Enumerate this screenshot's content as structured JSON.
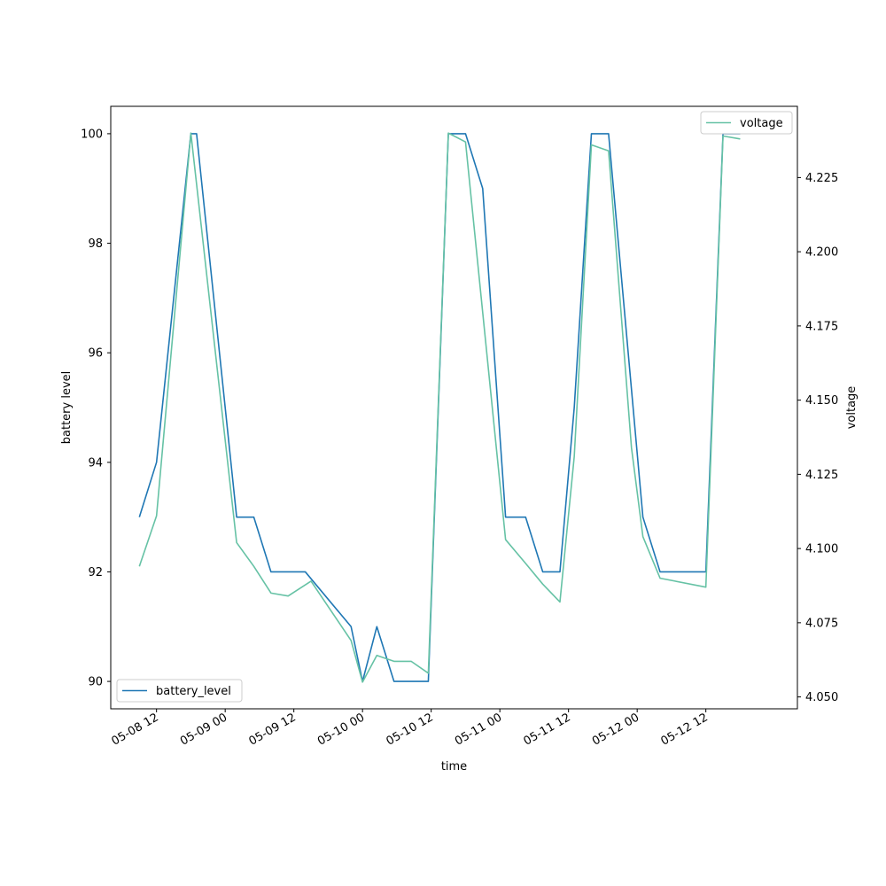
{
  "chart_data": {
    "type": "line",
    "title": "",
    "xlabel": "time",
    "ylabel": "battery level",
    "y2label": "voltage",
    "x_tick_labels": [
      "05-08 12",
      "05-09 00",
      "05-09 12",
      "05-10 00",
      "05-10 12",
      "05-11 00",
      "05-11 12",
      "05-12 00",
      "05-12 12"
    ],
    "y_ticks": [
      90,
      92,
      94,
      96,
      98,
      100
    ],
    "y2_ticks": [
      "4.050",
      "4.075",
      "4.100",
      "4.125",
      "4.150",
      "4.175",
      "4.200",
      "4.225"
    ],
    "ylim": [
      89.5,
      100.5
    ],
    "y2lim": [
      4.046,
      4.249
    ],
    "xlim": [
      "2021-05-08 04:00",
      "2021-05-13 04:00"
    ],
    "series": [
      {
        "name": "battery_level",
        "axis": "left",
        "color": "#1f77b4",
        "legend_position": "lower-left",
        "points": [
          [
            "2021-05-08 09:00",
            93
          ],
          [
            "2021-05-08 12:00",
            94
          ],
          [
            "2021-05-08 18:00",
            100
          ],
          [
            "2021-05-08 19:00",
            100
          ],
          [
            "2021-05-09 02:00",
            93
          ],
          [
            "2021-05-09 05:00",
            93
          ],
          [
            "2021-05-09 08:00",
            92
          ],
          [
            "2021-05-09 14:00",
            92
          ],
          [
            "2021-05-09 22:00",
            91
          ],
          [
            "2021-05-10 00:00",
            90
          ],
          [
            "2021-05-10 02:30",
            91
          ],
          [
            "2021-05-10 05:30",
            90
          ],
          [
            "2021-05-10 11:30",
            90
          ],
          [
            "2021-05-10 15:00",
            100
          ],
          [
            "2021-05-10 18:00",
            100
          ],
          [
            "2021-05-10 21:00",
            99
          ],
          [
            "2021-05-11 01:00",
            93
          ],
          [
            "2021-05-11 04:30",
            93
          ],
          [
            "2021-05-11 07:30",
            92
          ],
          [
            "2021-05-11 10:30",
            92
          ],
          [
            "2021-05-11 13:00",
            95
          ],
          [
            "2021-05-11 16:00",
            100
          ],
          [
            "2021-05-11 19:00",
            100
          ],
          [
            "2021-05-12 01:00",
            93
          ],
          [
            "2021-05-12 04:00",
            92
          ],
          [
            "2021-05-12 12:00",
            92
          ],
          [
            "2021-05-12 15:00",
            100
          ],
          [
            "2021-05-12 18:00",
            100
          ]
        ]
      },
      {
        "name": "voltage",
        "axis": "right",
        "color": "#66c2a5",
        "legend_position": "upper-right",
        "points": [
          [
            "2021-05-08 09:00",
            4.094
          ],
          [
            "2021-05-08 12:00",
            4.111
          ],
          [
            "2021-05-08 18:00",
            4.24
          ],
          [
            "2021-05-09 02:00",
            4.102
          ],
          [
            "2021-05-09 05:00",
            4.094
          ],
          [
            "2021-05-09 08:00",
            4.085
          ],
          [
            "2021-05-09 11:00",
            4.084
          ],
          [
            "2021-05-09 15:00",
            4.089
          ],
          [
            "2021-05-09 22:00",
            4.069
          ],
          [
            "2021-05-10 00:00",
            4.055
          ],
          [
            "2021-05-10 02:30",
            4.064
          ],
          [
            "2021-05-10 05:30",
            4.062
          ],
          [
            "2021-05-10 08:30",
            4.062
          ],
          [
            "2021-05-10 11:30",
            4.058
          ],
          [
            "2021-05-10 15:00",
            4.24
          ],
          [
            "2021-05-10 18:00",
            4.237
          ],
          [
            "2021-05-11 01:00",
            4.103
          ],
          [
            "2021-05-11 04:30",
            4.095
          ],
          [
            "2021-05-11 07:30",
            4.088
          ],
          [
            "2021-05-11 10:30",
            4.082
          ],
          [
            "2021-05-11 13:00",
            4.131
          ],
          [
            "2021-05-11 16:00",
            4.236
          ],
          [
            "2021-05-11 19:00",
            4.234
          ],
          [
            "2021-05-11 23:00",
            4.134
          ],
          [
            "2021-05-12 01:00",
            4.104
          ],
          [
            "2021-05-12 04:00",
            4.09
          ],
          [
            "2021-05-12 12:00",
            4.087
          ],
          [
            "2021-05-12 15:00",
            4.239
          ],
          [
            "2021-05-12 18:00",
            4.238
          ]
        ]
      }
    ]
  }
}
